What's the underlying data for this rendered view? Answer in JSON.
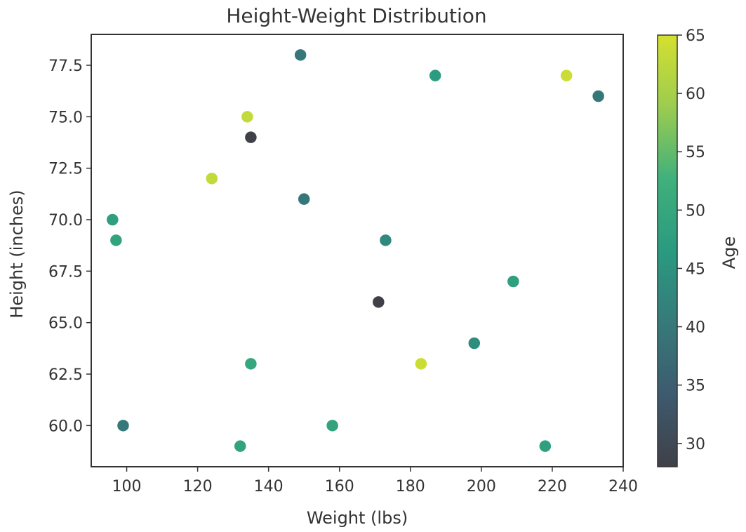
{
  "chart_data": {
    "type": "scatter",
    "title": "Height-Weight Distribution",
    "xlabel": "Weight (lbs)",
    "ylabel": "Height (inches)",
    "xlim": [
      90,
      240
    ],
    "ylim": [
      58,
      79
    ],
    "x_ticks": [
      100,
      120,
      140,
      160,
      180,
      200,
      220,
      240
    ],
    "x_tick_labels": [
      "100",
      "120",
      "140",
      "160",
      "180",
      "200",
      "220",
      "240"
    ],
    "y_ticks": [
      60.0,
      62.5,
      65.0,
      67.5,
      70.0,
      72.5,
      75.0,
      77.5
    ],
    "y_tick_labels": [
      "60.0",
      "62.5",
      "65.0",
      "67.5",
      "70.0",
      "72.5",
      "75.0",
      "77.5"
    ],
    "grid": false,
    "colormap": "viridis-like (dark gray to teal to yellow-green)",
    "colorbar": {
      "label": "Age",
      "range": [
        28,
        65
      ],
      "ticks": [
        30,
        35,
        40,
        45,
        50,
        55,
        60,
        65
      ],
      "tick_labels": [
        "30",
        "35",
        "40",
        "45",
        "50",
        "55",
        "60",
        "65"
      ],
      "colors": [
        "#404048",
        "#3d5a6e",
        "#367a7a",
        "#2a9a80",
        "#40b07c",
        "#9ccc50",
        "#d4e030"
      ]
    },
    "points": [
      {
        "x": 149,
        "y": 78,
        "age": 40
      },
      {
        "x": 187,
        "y": 77,
        "age": 47
      },
      {
        "x": 224,
        "y": 77,
        "age": 64
      },
      {
        "x": 233,
        "y": 76,
        "age": 40
      },
      {
        "x": 134,
        "y": 75,
        "age": 63
      },
      {
        "x": 135,
        "y": 74,
        "age": 28
      },
      {
        "x": 124,
        "y": 72,
        "age": 63
      },
      {
        "x": 150,
        "y": 71,
        "age": 40
      },
      {
        "x": 96,
        "y": 70,
        "age": 48
      },
      {
        "x": 97,
        "y": 69,
        "age": 49
      },
      {
        "x": 173,
        "y": 69,
        "age": 43
      },
      {
        "x": 209,
        "y": 67,
        "age": 48
      },
      {
        "x": 171,
        "y": 66,
        "age": 28
      },
      {
        "x": 198,
        "y": 64,
        "age": 44
      },
      {
        "x": 135,
        "y": 63,
        "age": 50
      },
      {
        "x": 183,
        "y": 63,
        "age": 64
      },
      {
        "x": 99,
        "y": 60,
        "age": 40
      },
      {
        "x": 158,
        "y": 60,
        "age": 49
      },
      {
        "x": 132,
        "y": 59,
        "age": 49
      },
      {
        "x": 218,
        "y": 59,
        "age": 48
      }
    ]
  }
}
